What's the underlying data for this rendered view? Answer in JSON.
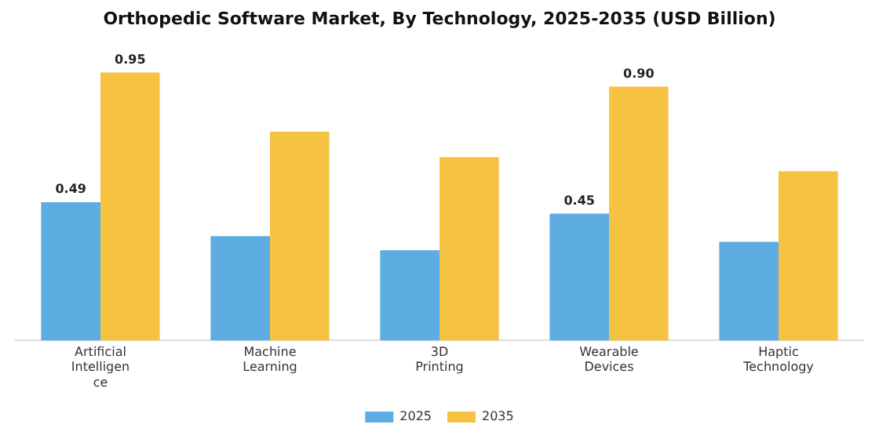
{
  "chart_data": {
    "type": "bar",
    "title": "Orthopedic Software Market, By Technology, 2025-2035 (USD Billion)",
    "categories": [
      "Artificial\nIntelligen\nce",
      "Machine\nLearning",
      "3D\nPrinting",
      "Wearable\nDevices",
      "Haptic\nTechnology"
    ],
    "series": [
      {
        "name": "2025",
        "color": "#5dade2",
        "values": [
          0.49,
          0.37,
          0.32,
          0.45,
          0.35
        ],
        "value_labels": [
          "0.49",
          null,
          null,
          "0.45",
          null
        ]
      },
      {
        "name": "2035",
        "color": "#f5c242",
        "values": [
          0.95,
          0.74,
          0.65,
          0.9,
          0.6
        ],
        "value_labels": [
          "0.95",
          null,
          null,
          "0.90",
          null
        ]
      }
    ],
    "legend": "bottom",
    "grid": false
  }
}
